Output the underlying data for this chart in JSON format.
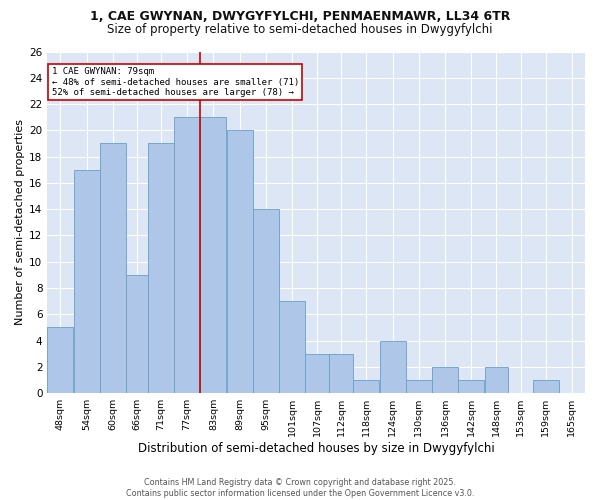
{
  "title1": "1, CAE GWYNAN, DWYGYFYLCHI, PENMAENMAWR, LL34 6TR",
  "title2": "Size of property relative to semi-detached houses in Dwygyfylchi",
  "xlabel": "Distribution of semi-detached houses by size in Dwygyfylchi",
  "ylabel": "Number of semi-detached properties",
  "categories": [
    "48sqm",
    "54sqm",
    "60sqm",
    "66sqm",
    "71sqm",
    "77sqm",
    "83sqm",
    "89sqm",
    "95sqm",
    "101sqm",
    "107sqm",
    "112sqm",
    "118sqm",
    "124sqm",
    "130sqm",
    "136sqm",
    "142sqm",
    "148sqm",
    "153sqm",
    "159sqm",
    "165sqm"
  ],
  "values": [
    5,
    17,
    19,
    9,
    19,
    21,
    21,
    20,
    14,
    7,
    3,
    3,
    1,
    4,
    1,
    2,
    1,
    2,
    0,
    1,
    0
  ],
  "bar_color": "#aec6e8",
  "bar_edge_color": "#6a9fc8",
  "bin_edges": [
    45,
    51,
    57,
    63,
    68,
    74,
    80,
    86,
    92,
    98,
    104,
    109.5,
    115,
    121,
    127,
    133,
    139,
    145,
    150.5,
    156,
    162,
    168
  ],
  "annotation_text": "1 CAE GWYNAN: 79sqm\n← 48% of semi-detached houses are smaller (71)\n52% of semi-detached houses are larger (78) →",
  "annotation_box_color": "#cc0000",
  "ylim": [
    0,
    26
  ],
  "yticks": [
    0,
    2,
    4,
    6,
    8,
    10,
    12,
    14,
    16,
    18,
    20,
    22,
    24,
    26
  ],
  "footer": "Contains HM Land Registry data © Crown copyright and database right 2025.\nContains public sector information licensed under the Open Government Licence v3.0.",
  "background_color": "#dce6f5",
  "title1_fontsize": 9,
  "title2_fontsize": 8.5,
  "xlabel_fontsize": 8.5,
  "ylabel_fontsize": 8
}
